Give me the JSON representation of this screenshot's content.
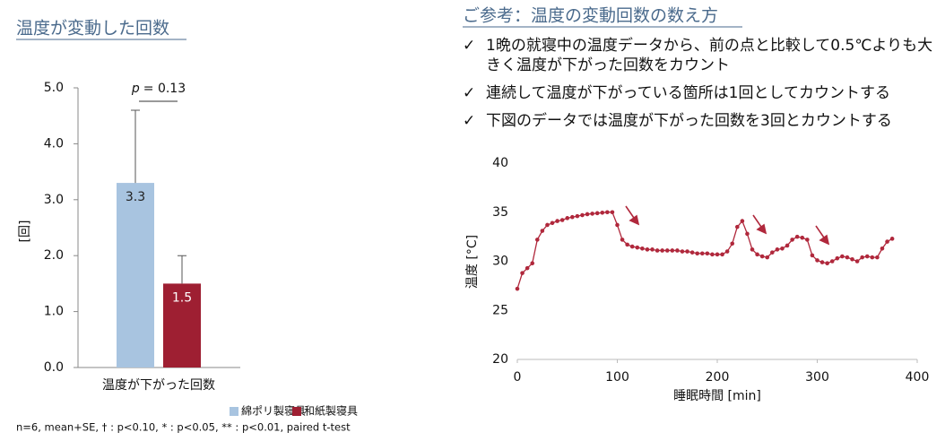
{
  "chart_data": [
    {
      "type": "bar",
      "title": "温度が変動した回数",
      "ylabel": "[回]",
      "categories": [
        "温度が下がった回数"
      ],
      "series": [
        {
          "name": "綿ポリ製寝具",
          "color": "#a8c4e0",
          "values": [
            3.3
          ],
          "errors": [
            1.3
          ],
          "label_color": "#222222"
        },
        {
          "name": "和紙製寝具",
          "color": "#9e1f32",
          "values": [
            1.5
          ],
          "errors": [
            0.5
          ],
          "label_color": "#ffffff"
        }
      ],
      "ylim": [
        0,
        5
      ],
      "yticks": [
        {
          "value": 0,
          "label": "0.0"
        },
        {
          "value": 1,
          "label": "1.0"
        },
        {
          "value": 2,
          "label": "2.0"
        },
        {
          "value": 3,
          "label": "3.0"
        },
        {
          "value": 4,
          "label": "4.0"
        },
        {
          "value": 5,
          "label": "5.0"
        }
      ],
      "annotation": {
        "symbol": "p",
        "text": "= 0.13"
      },
      "footnote": "n=6, mean+SE, † : p<0.10, * : p<0.05, ** : p<0.01, paired t-test"
    },
    {
      "type": "line",
      "xlabel": "睡眠時間 [min]",
      "ylabel": "温度 [°C]",
      "x": [
        0,
        5,
        10,
        15,
        20,
        25,
        30,
        35,
        40,
        45,
        50,
        55,
        60,
        65,
        70,
        75,
        80,
        85,
        90,
        95,
        100,
        105,
        110,
        115,
        120,
        125,
        130,
        135,
        140,
        145,
        150,
        155,
        160,
        165,
        170,
        175,
        180,
        185,
        190,
        195,
        200,
        205,
        210,
        215,
        220,
        225,
        230,
        235,
        240,
        245,
        250,
        255,
        260,
        265,
        270,
        275,
        280,
        285,
        290,
        295,
        300,
        305,
        310,
        315,
        320,
        325,
        330,
        335,
        340,
        345,
        350,
        355,
        360,
        365,
        370,
        375
      ],
      "series": [
        {
          "name": "温度",
          "color": "#b0283c",
          "values": [
            27.2,
            28.8,
            29.3,
            29.8,
            32.2,
            33.1,
            33.7,
            33.9,
            34.1,
            34.2,
            34.4,
            34.5,
            34.6,
            34.7,
            34.8,
            34.85,
            34.9,
            34.95,
            35.0,
            35.0,
            33.7,
            32.2,
            31.7,
            31.5,
            31.4,
            31.3,
            31.2,
            31.2,
            31.1,
            31.1,
            31.1,
            31.1,
            31.1,
            31.0,
            31.0,
            30.9,
            30.8,
            30.8,
            30.8,
            30.7,
            30.7,
            30.7,
            31.0,
            31.8,
            33.5,
            34.1,
            32.8,
            31.2,
            30.7,
            30.5,
            30.4,
            30.9,
            31.2,
            31.3,
            31.6,
            32.2,
            32.5,
            32.4,
            32.2,
            30.6,
            30.1,
            29.9,
            29.8,
            30.0,
            30.3,
            30.5,
            30.4,
            30.2,
            30.0,
            30.4,
            30.5,
            30.4,
            30.4,
            31.3,
            32.0,
            32.3
          ]
        }
      ],
      "xlim": [
        0,
        400
      ],
      "xticks": [
        0,
        100,
        200,
        300,
        400
      ],
      "ylim": [
        20,
        40
      ],
      "yticks": [
        20,
        25,
        30,
        35,
        40
      ]
    }
  ],
  "reference": {
    "heading": "ご参考：温度の変動回数の数え方",
    "bullets": [
      "1晩の就寝中の温度データから、前の点と比較して0.5℃よりも大きく温度が下がった回数をカウント",
      "連続して温度が下がっている箇所は1回としてカウントする",
      "下図のデータでは温度が下がった回数を3回とカウントする"
    ]
  }
}
